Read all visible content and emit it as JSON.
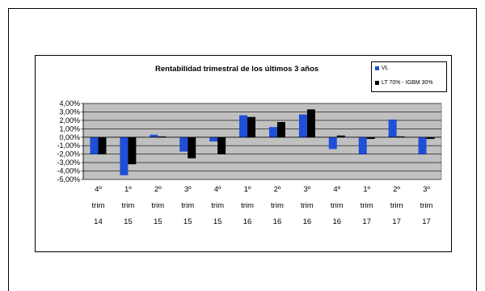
{
  "chart_data": {
    "type": "bar",
    "title": "Rentabilidad trimestral de los últimos 3 años",
    "categories": [
      [
        "4º",
        "trim",
        "14"
      ],
      [
        "1º",
        "trim",
        "15"
      ],
      [
        "2º",
        "trim",
        "15"
      ],
      [
        "3º",
        "trim",
        "15"
      ],
      [
        "4º",
        "trim",
        "15"
      ],
      [
        "1º",
        "trim",
        "16"
      ],
      [
        "2º",
        "trim",
        "16"
      ],
      [
        "3º",
        "trim",
        "16"
      ],
      [
        "4º",
        "trim",
        "16"
      ],
      [
        "1º",
        "trim",
        "17"
      ],
      [
        "2º",
        "trim",
        "17"
      ],
      [
        "3º",
        "trim",
        "17"
      ]
    ],
    "series": [
      {
        "name": "VL",
        "color": "#1f4ed8",
        "values": [
          -2.0,
          -4.5,
          0.3,
          -1.7,
          -0.5,
          2.6,
          1.2,
          2.7,
          -1.4,
          -2.0,
          2.1,
          -2.0
        ]
      },
      {
        "name": "LT 70% - IGBM 30%",
        "color": "#000000",
        "values": [
          -2.0,
          -3.2,
          0.1,
          -2.5,
          -2.0,
          2.4,
          1.8,
          3.3,
          0.2,
          -0.2,
          0.1,
          -0.2
        ]
      }
    ],
    "ylim": [
      -5,
      4
    ],
    "yticks": [
      "4,00%",
      "3,00%",
      "2,00%",
      "1,00%",
      "0,00%",
      "-1,00%",
      "-2,00%",
      "-3,00%",
      "-4,00%",
      "-5,00%"
    ],
    "grid": true,
    "legend": "top-right",
    "plot_background": "#c0c0c0"
  }
}
